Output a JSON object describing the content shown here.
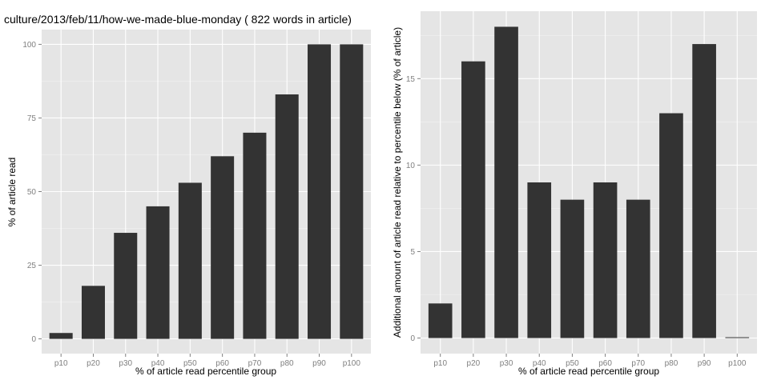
{
  "chart_data": [
    {
      "type": "bar",
      "title": "culture/2013/feb/11/how-we-made-blue-monday ( 822 words in article)",
      "xlabel": "% of article read percentile group",
      "ylabel": "% of article read",
      "categories": [
        "p10",
        "p20",
        "p30",
        "p40",
        "p50",
        "p60",
        "p70",
        "p80",
        "p90",
        "p100"
      ],
      "values": [
        2,
        18,
        36,
        45,
        53,
        62,
        70,
        83,
        100,
        100
      ],
      "ylim": [
        -5,
        105
      ],
      "yticks": [
        0,
        25,
        50,
        75,
        100
      ],
      "yticklabels": [
        "0",
        "25",
        "50",
        "75",
        "100"
      ],
      "grid": true,
      "bar_color": "#333333",
      "panel_color": "#e5e5e5"
    },
    {
      "type": "bar",
      "title": "",
      "xlabel": "% of article read percentile group",
      "ylabel": "Additional amount of article read relative to percentile below (% of article)",
      "categories": [
        "p10",
        "p20",
        "p30",
        "p40",
        "p50",
        "p60",
        "p70",
        "p80",
        "p90",
        "p100"
      ],
      "values": [
        2,
        16,
        18,
        9,
        8,
        9,
        8,
        13,
        17,
        0
      ],
      "ylim": [
        -0.9,
        18.9
      ],
      "yticks": [
        0,
        5,
        10,
        15
      ],
      "yticklabels": [
        "0",
        "5",
        "10",
        "15"
      ],
      "grid": true,
      "bar_color": "#333333",
      "panel_color": "#e5e5e5"
    }
  ]
}
